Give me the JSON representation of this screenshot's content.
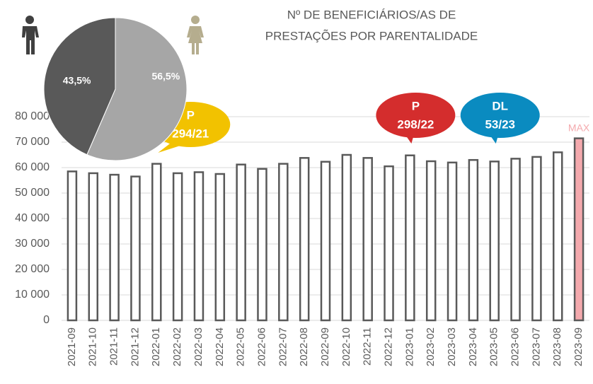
{
  "chart_data": [
    {
      "type": "bar",
      "title_lines": [
        "Nº DE BENEFICIÁRIOS/AS DE",
        "PRESTAÇÕES POR PARENTALIDADE"
      ],
      "categories": [
        "2021-09",
        "2021-10",
        "2021-11",
        "2021-12",
        "2022-01",
        "2022-02",
        "2022-03",
        "2022-04",
        "2022-05",
        "2022-06",
        "2022-07",
        "2022-08",
        "2022-09",
        "2022-10",
        "2022-11",
        "2022-12",
        "2023-01",
        "2023-02",
        "2023-03",
        "2023-04",
        "2023-05",
        "2023-06",
        "2023-07",
        "2023-08",
        "2023-09"
      ],
      "values": [
        58500,
        57800,
        57200,
        56500,
        61500,
        57800,
        58200,
        57500,
        61200,
        59500,
        61500,
        63800,
        62300,
        65000,
        63800,
        60500,
        64800,
        62500,
        62000,
        63000,
        62400,
        63500,
        64200,
        66000,
        71500
      ],
      "color": "#ffffff",
      "stroke": "#595959",
      "highlight": {
        "index": 24,
        "color": "#f4a9ad",
        "label": "MAX"
      },
      "ylim": [
        0,
        80000
      ],
      "yticks": [
        0,
        {
          "value": 10000,
          "label": "10 000"
        },
        {
          "value": 20000,
          "label": "20 000"
        },
        {
          "value": 30000,
          "label": "30 000"
        },
        {
          "value": 40000,
          "label": "40 000"
        },
        {
          "value": 50000,
          "label": "50 000"
        },
        {
          "value": 60000,
          "label": "60 000"
        },
        {
          "value": 70000,
          "label": "70 000"
        },
        {
          "value": 80000,
          "label": "80 000"
        }
      ],
      "grid": true,
      "annotations": [
        {
          "lines": [
            "P",
            "294/21"
          ],
          "color": "#f2c200",
          "index": 4
        },
        {
          "lines": [
            "P",
            "298/22"
          ],
          "color": "#d42d2d",
          "index": 16
        },
        {
          "lines": [
            "DL",
            "53/23"
          ],
          "color": "#0a8bc0",
          "index": 20
        }
      ]
    },
    {
      "type": "pie",
      "categories": [
        "Homens",
        "Mulheres"
      ],
      "values": [
        43.5,
        56.5
      ],
      "value_labels": [
        "43,5%",
        "56,5%"
      ],
      "colors": [
        "#595959",
        "#a6a6a6"
      ]
    }
  ]
}
